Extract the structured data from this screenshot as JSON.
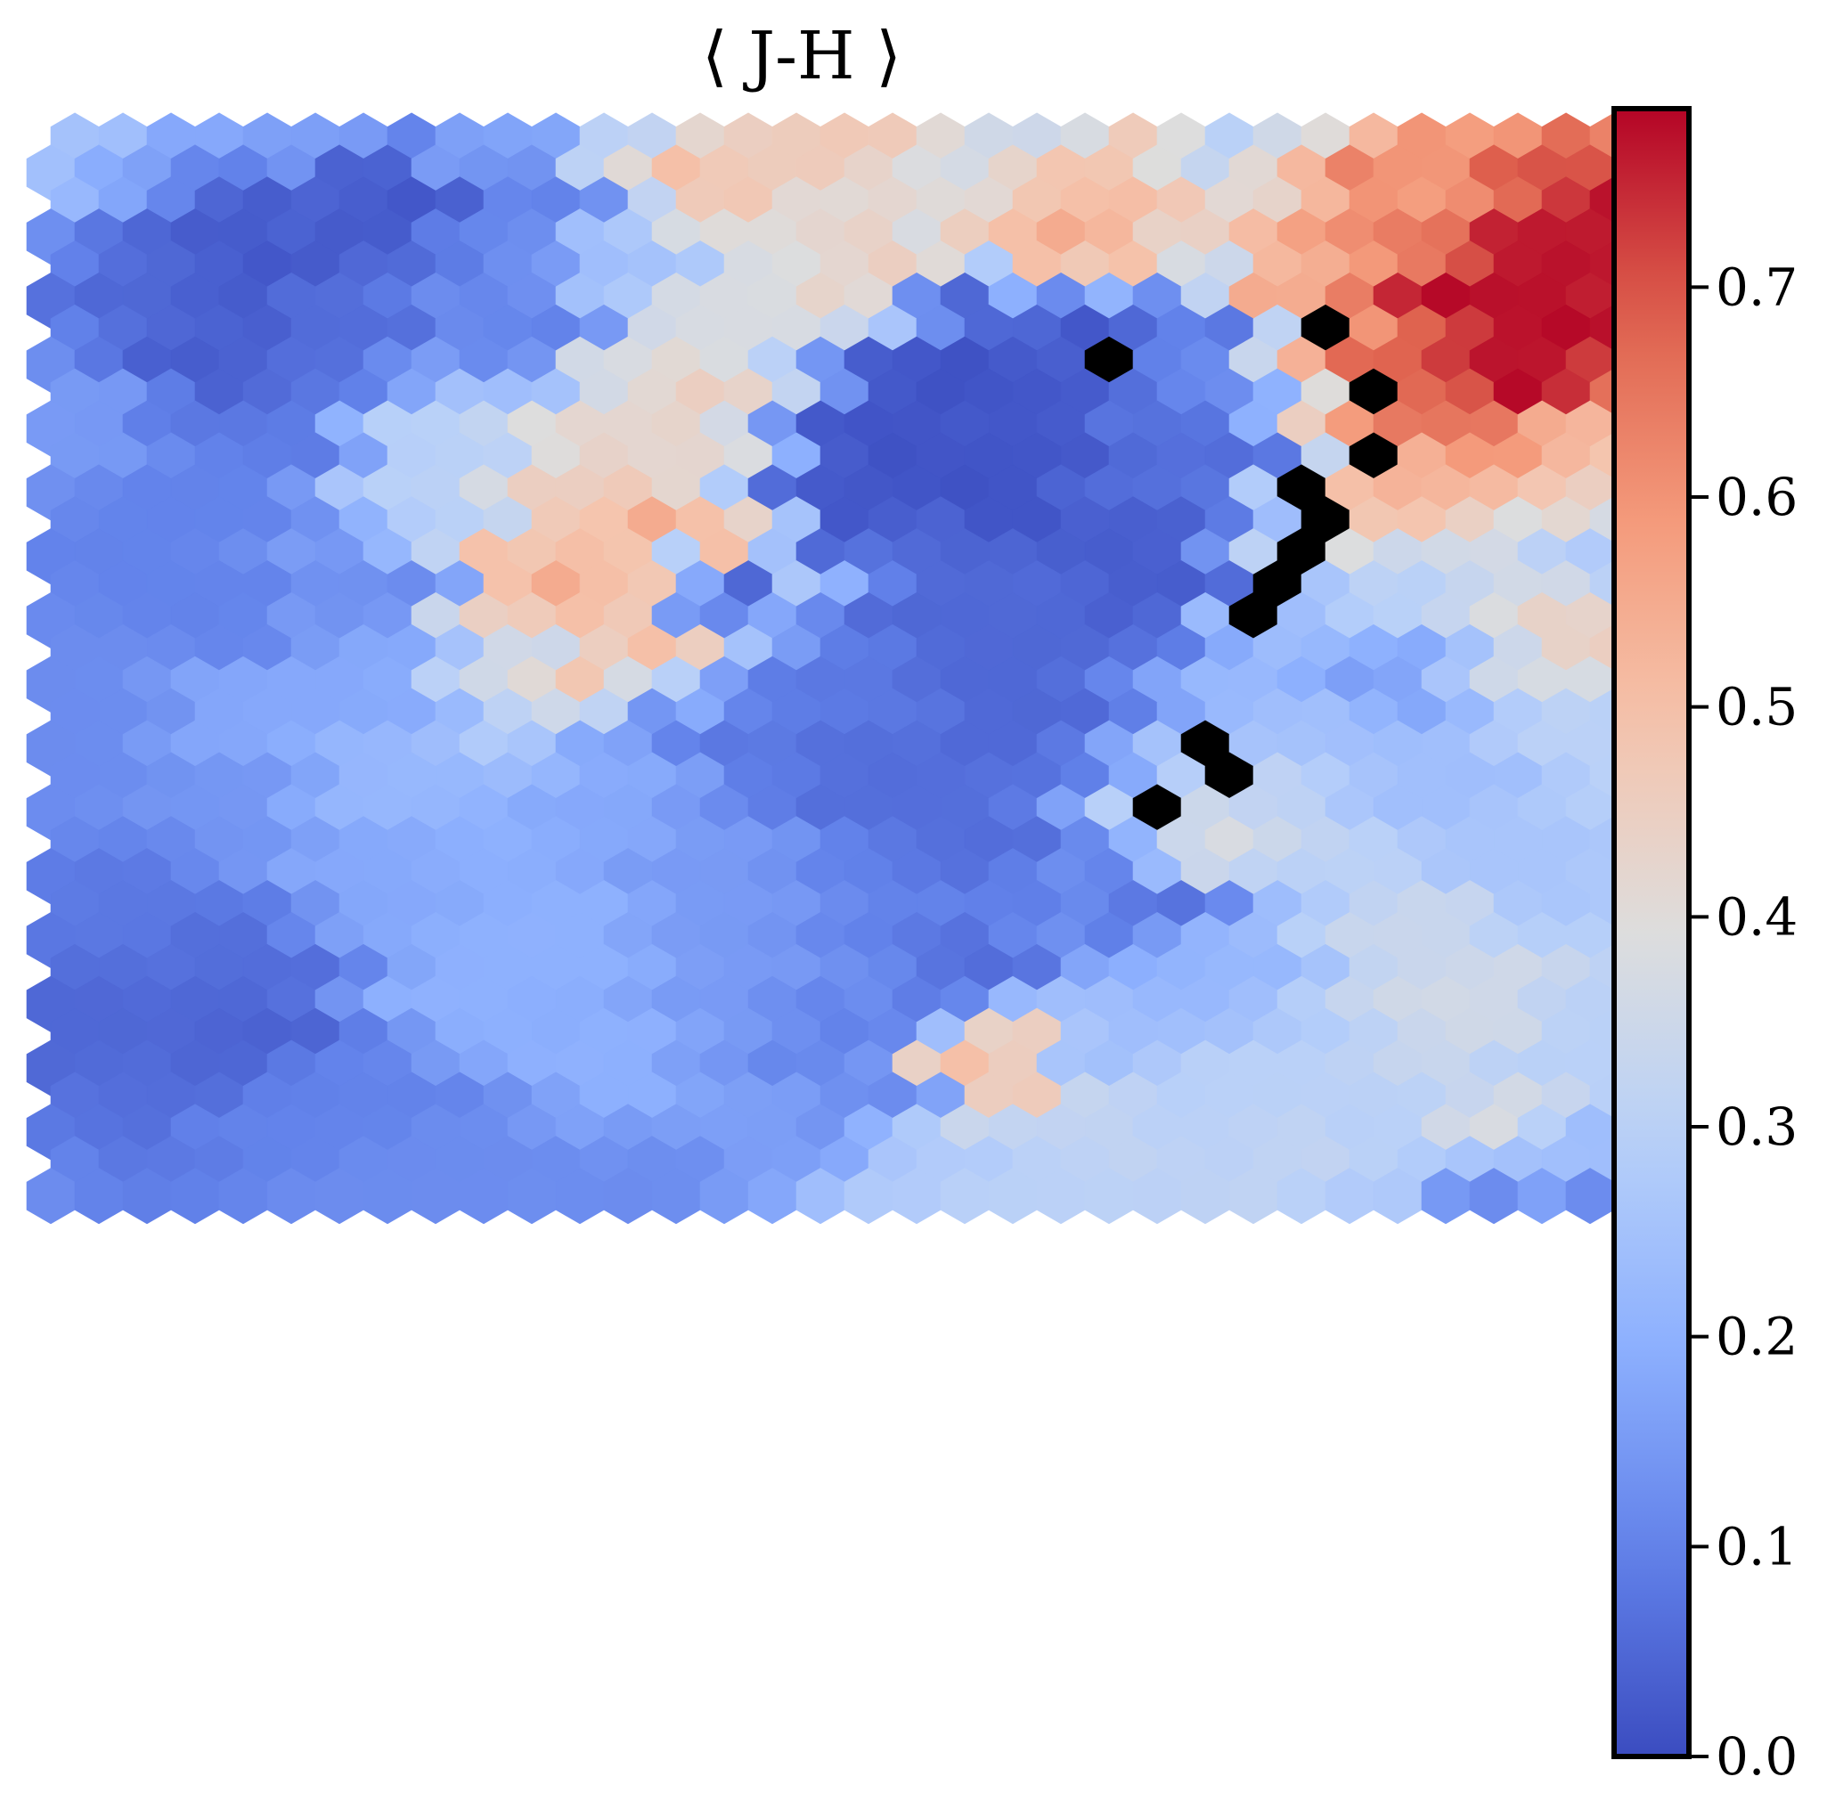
{
  "chart_data": {
    "type": "heatmap",
    "subtype": "hexagonal-som",
    "title": "⟨ J-H ⟩",
    "grid": {
      "rows": 34,
      "cols": 33
    },
    "colormap": "coolwarm",
    "colorbar": {
      "vmin": 0.0,
      "vmax": 0.785,
      "ticks": [
        0.0,
        0.1,
        0.2,
        0.3,
        0.4,
        0.5,
        0.6,
        0.7
      ],
      "tick_labels": [
        "0.0",
        "0.1",
        "0.2",
        "0.3",
        "0.4",
        "0.5",
        "0.6",
        "0.7"
      ],
      "position": "right"
    },
    "missing_value_color": "#000000",
    "missing_cells": [
      [
        6,
        26
      ],
      [
        7,
        22
      ],
      [
        8,
        27
      ],
      [
        10,
        27
      ],
      [
        11,
        26
      ],
      [
        12,
        26
      ],
      [
        13,
        26
      ],
      [
        14,
        25
      ],
      [
        15,
        25
      ],
      [
        19,
        24
      ],
      [
        20,
        24
      ],
      [
        21,
        23
      ]
    ],
    "value_field_description": "Anchored mean J-H color per map cell; interpolated between anchors",
    "anchors": [
      {
        "r": 0,
        "c": 0,
        "v": 0.25
      },
      {
        "r": 0,
        "c": 3,
        "v": 0.18
      },
      {
        "r": 0,
        "c": 5,
        "v": 0.16
      },
      {
        "r": 0,
        "c": 9,
        "v": 0.17
      },
      {
        "r": 0,
        "c": 12,
        "v": 0.32
      },
      {
        "r": 0,
        "c": 14,
        "v": 0.45
      },
      {
        "r": 0,
        "c": 16,
        "v": 0.47
      },
      {
        "r": 0,
        "c": 20,
        "v": 0.35
      },
      {
        "r": 0,
        "c": 24,
        "v": 0.3
      },
      {
        "r": 0,
        "c": 26,
        "v": 0.4
      },
      {
        "r": 0,
        "c": 29,
        "v": 0.58
      },
      {
        "r": 0,
        "c": 32,
        "v": 0.63
      },
      {
        "r": 1,
        "c": 13,
        "v": 0.5
      },
      {
        "r": 1,
        "c": 22,
        "v": 0.48
      },
      {
        "r": 1,
        "c": 27,
        "v": 0.63
      },
      {
        "r": 1,
        "c": 31,
        "v": 0.7
      },
      {
        "r": 2,
        "c": 4,
        "v": 0.03
      },
      {
        "r": 2,
        "c": 7,
        "v": 0.02
      },
      {
        "r": 2,
        "c": 10,
        "v": 0.1
      },
      {
        "r": 2,
        "c": 21,
        "v": 0.5
      },
      {
        "r": 2,
        "c": 28,
        "v": 0.58
      },
      {
        "r": 2,
        "c": 32,
        "v": 0.77
      },
      {
        "r": 3,
        "c": 15,
        "v": 0.4
      },
      {
        "r": 3,
        "c": 21,
        "v": 0.55
      },
      {
        "r": 3,
        "c": 28,
        "v": 0.64
      },
      {
        "r": 4,
        "c": 4,
        "v": 0.02
      },
      {
        "r": 4,
        "c": 12,
        "v": 0.25
      },
      {
        "r": 4,
        "c": 17,
        "v": 0.45
      },
      {
        "r": 4,
        "c": 20,
        "v": 0.5
      },
      {
        "r": 4,
        "c": 31,
        "v": 0.77
      },
      {
        "r": 5,
        "c": 2,
        "v": 0.05
      },
      {
        "r": 5,
        "c": 14,
        "v": 0.38
      },
      {
        "r": 5,
        "c": 19,
        "v": 0.05
      },
      {
        "r": 5,
        "c": 25,
        "v": 0.55
      },
      {
        "r": 5,
        "c": 29,
        "v": 0.78
      },
      {
        "r": 6,
        "c": 6,
        "v": 0.06
      },
      {
        "r": 6,
        "c": 10,
        "v": 0.1
      },
      {
        "r": 6,
        "c": 21,
        "v": 0.02
      },
      {
        "r": 6,
        "c": 24,
        "v": 0.08
      },
      {
        "r": 6,
        "c": 31,
        "v": 0.78
      },
      {
        "r": 7,
        "c": 3,
        "v": 0.03
      },
      {
        "r": 7,
        "c": 12,
        "v": 0.38
      },
      {
        "r": 7,
        "c": 19,
        "v": 0.01
      },
      {
        "r": 7,
        "c": 28,
        "v": 0.68
      },
      {
        "r": 8,
        "c": 13,
        "v": 0.45
      },
      {
        "r": 8,
        "c": 18,
        "v": 0.01
      },
      {
        "r": 8,
        "c": 30,
        "v": 0.78
      },
      {
        "r": 9,
        "c": 0,
        "v": 0.15
      },
      {
        "r": 9,
        "c": 4,
        "v": 0.08
      },
      {
        "r": 9,
        "c": 12,
        "v": 0.42
      },
      {
        "r": 9,
        "c": 20,
        "v": 0.02
      },
      {
        "r": 9,
        "c": 29,
        "v": 0.65
      },
      {
        "r": 10,
        "c": 8,
        "v": 0.3
      },
      {
        "r": 10,
        "c": 12,
        "v": 0.42
      },
      {
        "r": 10,
        "c": 17,
        "v": 0.01
      },
      {
        "r": 10,
        "c": 24,
        "v": 0.06
      },
      {
        "r": 10,
        "c": 31,
        "v": 0.52
      },
      {
        "r": 11,
        "c": 3,
        "v": 0.1
      },
      {
        "r": 11,
        "c": 11,
        "v": 0.45
      },
      {
        "r": 11,
        "c": 19,
        "v": 0.01
      },
      {
        "r": 11,
        "c": 28,
        "v": 0.53
      },
      {
        "r": 11,
        "c": 32,
        "v": 0.45
      },
      {
        "r": 12,
        "c": 8,
        "v": 0.3
      },
      {
        "r": 12,
        "c": 12,
        "v": 0.55
      },
      {
        "r": 12,
        "c": 16,
        "v": 0.02
      },
      {
        "r": 12,
        "c": 27,
        "v": 0.48
      },
      {
        "r": 13,
        "c": 1,
        "v": 0.1
      },
      {
        "r": 13,
        "c": 10,
        "v": 0.48
      },
      {
        "r": 13,
        "c": 14,
        "v": 0.5
      },
      {
        "r": 13,
        "c": 22,
        "v": 0.03
      },
      {
        "r": 13,
        "c": 29,
        "v": 0.36
      },
      {
        "r": 13,
        "c": 32,
        "v": 0.28
      },
      {
        "r": 14,
        "c": 7,
        "v": 0.12
      },
      {
        "r": 14,
        "c": 10,
        "v": 0.55
      },
      {
        "r": 14,
        "c": 14,
        "v": 0.05
      },
      {
        "r": 14,
        "c": 23,
        "v": 0.03
      },
      {
        "r": 14,
        "c": 28,
        "v": 0.3
      },
      {
        "r": 15,
        "c": 3,
        "v": 0.1
      },
      {
        "r": 15,
        "c": 11,
        "v": 0.5
      },
      {
        "r": 15,
        "c": 18,
        "v": 0.05
      },
      {
        "r": 15,
        "c": 25,
        "v": 0.25
      },
      {
        "r": 16,
        "c": 10,
        "v": 0.35
      },
      {
        "r": 16,
        "c": 12,
        "v": 0.5
      },
      {
        "r": 16,
        "c": 20,
        "v": 0.05
      },
      {
        "r": 16,
        "c": 26,
        "v": 0.22
      },
      {
        "r": 16,
        "c": 32,
        "v": 0.45
      },
      {
        "r": 17,
        "c": 0,
        "v": 0.12
      },
      {
        "r": 17,
        "c": 6,
        "v": 0.18
      },
      {
        "r": 17,
        "c": 11,
        "v": 0.48
      },
      {
        "r": 17,
        "c": 16,
        "v": 0.08
      },
      {
        "r": 17,
        "c": 27,
        "v": 0.16
      },
      {
        "r": 18,
        "c": 4,
        "v": 0.18
      },
      {
        "r": 18,
        "c": 12,
        "v": 0.14
      },
      {
        "r": 18,
        "c": 20,
        "v": 0.05
      },
      {
        "r": 18,
        "c": 32,
        "v": 0.3
      },
      {
        "r": 19,
        "c": 0,
        "v": 0.12
      },
      {
        "r": 19,
        "c": 14,
        "v": 0.08
      },
      {
        "r": 19,
        "c": 26,
        "v": 0.25
      },
      {
        "r": 20,
        "c": 7,
        "v": 0.22
      },
      {
        "r": 20,
        "c": 17,
        "v": 0.06
      },
      {
        "r": 20,
        "c": 29,
        "v": 0.24
      },
      {
        "r": 21,
        "c": 3,
        "v": 0.14
      },
      {
        "r": 21,
        "c": 11,
        "v": 0.18
      },
      {
        "r": 21,
        "c": 25,
        "v": 0.32
      },
      {
        "r": 22,
        "c": 19,
        "v": 0.06
      },
      {
        "r": 22,
        "c": 24,
        "v": 0.38
      },
      {
        "r": 23,
        "c": 6,
        "v": 0.18
      },
      {
        "r": 23,
        "c": 13,
        "v": 0.15
      },
      {
        "r": 23,
        "c": 30,
        "v": 0.26
      },
      {
        "r": 24,
        "c": 2,
        "v": 0.08
      },
      {
        "r": 24,
        "c": 18,
        "v": 0.1
      },
      {
        "r": 24,
        "c": 23,
        "v": 0.07
      },
      {
        "r": 25,
        "c": 10,
        "v": 0.2
      },
      {
        "r": 25,
        "c": 28,
        "v": 0.34
      },
      {
        "r": 26,
        "c": 4,
        "v": 0.06
      },
      {
        "r": 26,
        "c": 19,
        "v": 0.06
      },
      {
        "r": 26,
        "c": 24,
        "v": 0.22
      },
      {
        "r": 27,
        "c": 8,
        "v": 0.2
      },
      {
        "r": 27,
        "c": 14,
        "v": 0.15
      },
      {
        "r": 27,
        "c": 29,
        "v": 0.36
      },
      {
        "r": 28,
        "c": 1,
        "v": 0.05
      },
      {
        "r": 28,
        "c": 4,
        "v": 0.04
      },
      {
        "r": 28,
        "c": 16,
        "v": 0.1
      },
      {
        "r": 28,
        "c": 22,
        "v": 0.24
      },
      {
        "r": 29,
        "c": 11,
        "v": 0.2
      },
      {
        "r": 29,
        "c": 19,
        "v": 0.5
      },
      {
        "r": 29,
        "c": 31,
        "v": 0.3
      },
      {
        "r": 30,
        "c": 2,
        "v": 0.06
      },
      {
        "r": 30,
        "c": 7,
        "v": 0.1
      },
      {
        "r": 30,
        "c": 17,
        "v": 0.12
      },
      {
        "r": 30,
        "c": 25,
        "v": 0.3
      },
      {
        "r": 31,
        "c": 4,
        "v": 0.1
      },
      {
        "r": 31,
        "c": 14,
        "v": 0.16
      },
      {
        "r": 31,
        "c": 21,
        "v": 0.32
      },
      {
        "r": 31,
        "c": 30,
        "v": 0.38
      },
      {
        "r": 32,
        "c": 1,
        "v": 0.08
      },
      {
        "r": 32,
        "c": 9,
        "v": 0.12
      },
      {
        "r": 32,
        "c": 18,
        "v": 0.28
      },
      {
        "r": 32,
        "c": 26,
        "v": 0.32
      },
      {
        "r": 32,
        "c": 32,
        "v": 0.24
      },
      {
        "r": 33,
        "c": 0,
        "v": 0.12
      },
      {
        "r": 33,
        "c": 6,
        "v": 0.12
      },
      {
        "r": 33,
        "c": 12,
        "v": 0.12
      },
      {
        "r": 33,
        "c": 20,
        "v": 0.3
      },
      {
        "r": 33,
        "c": 27,
        "v": 0.28
      },
      {
        "r": 33,
        "c": 30,
        "v": 0.12
      },
      {
        "r": 33,
        "c": 32,
        "v": 0.12
      }
    ]
  }
}
